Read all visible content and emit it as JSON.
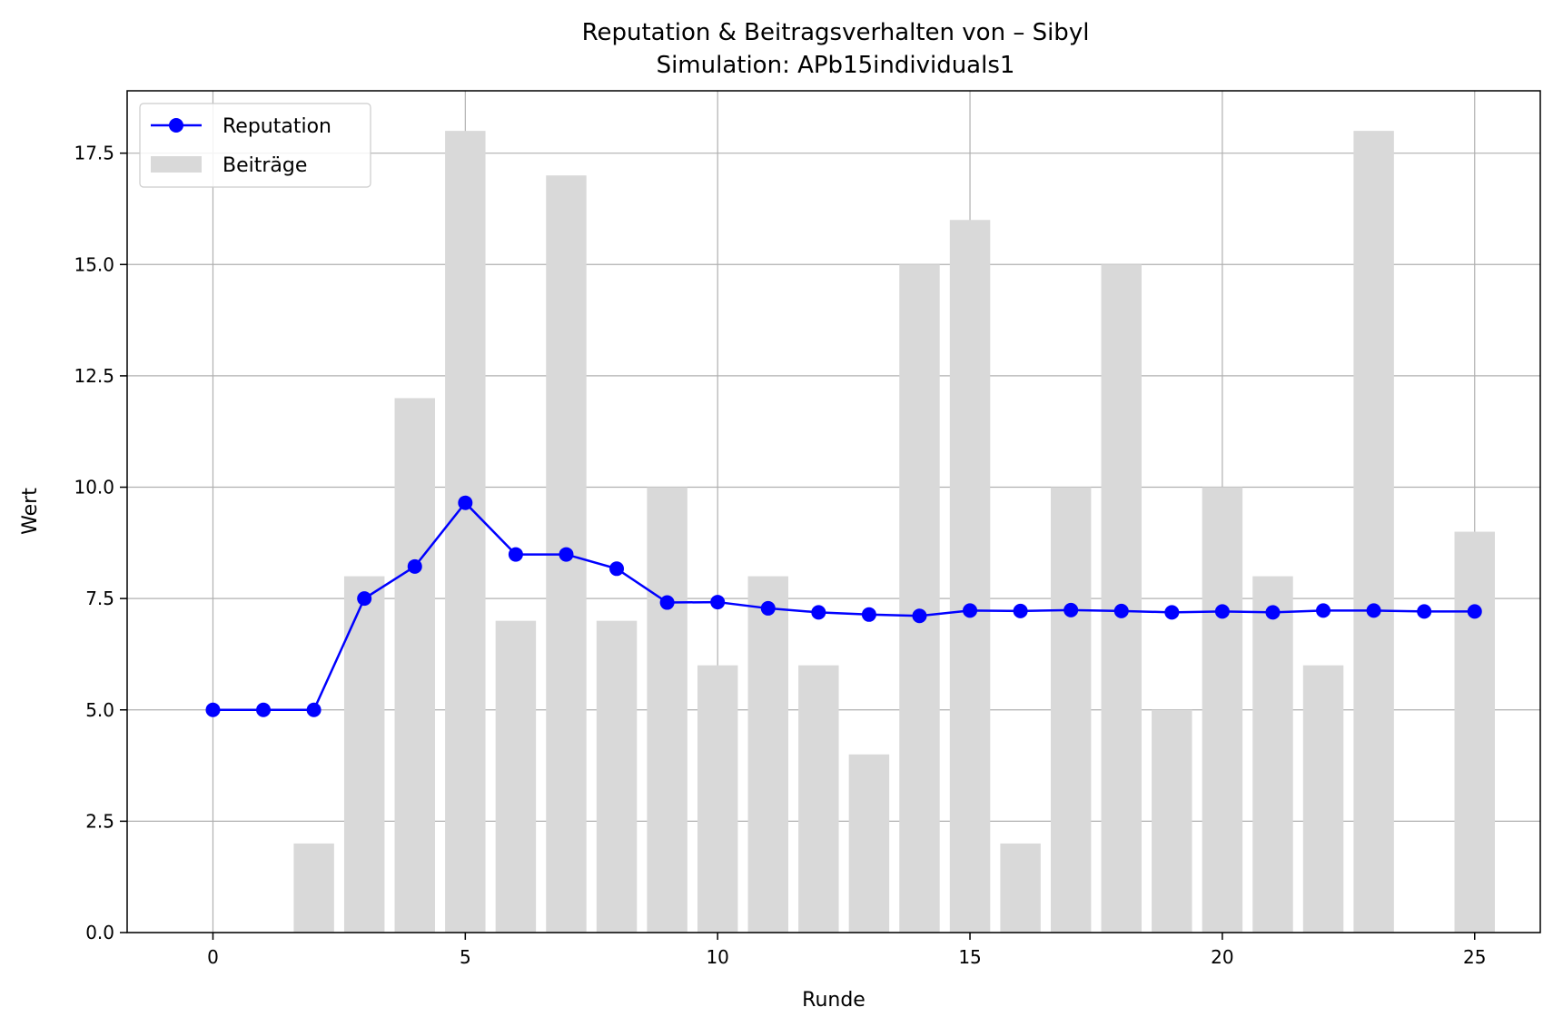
{
  "chart_data": {
    "type": "bar+line",
    "title": "Reputation & Beitragsverhalten von – Sibyl",
    "subtitle": "Simulation: APb15individuals1",
    "xlabel": "Runde",
    "ylabel": "Wert",
    "xlim": [
      -1.7,
      26.3
    ],
    "ylim": [
      0,
      18.9
    ],
    "xticks": [
      0,
      5,
      10,
      15,
      20,
      25
    ],
    "yticks": [
      0.0,
      2.5,
      5.0,
      7.5,
      10.0,
      12.5,
      15.0,
      17.5
    ],
    "grid": true,
    "legend_position": "top-left",
    "series": [
      {
        "name": "Reputation",
        "kind": "line",
        "color": "#0000ff",
        "x": [
          0,
          1,
          2,
          3,
          4,
          5,
          6,
          7,
          8,
          9,
          10,
          11,
          12,
          13,
          14,
          15,
          16,
          17,
          18,
          19,
          20,
          21,
          22,
          23,
          24,
          25
        ],
        "values": [
          5.0,
          5.0,
          5.0,
          7.5,
          8.22,
          9.65,
          8.49,
          8.49,
          8.17,
          7.41,
          7.42,
          7.28,
          7.19,
          7.14,
          7.11,
          7.23,
          7.22,
          7.24,
          7.22,
          7.19,
          7.21,
          7.19,
          7.23,
          7.23,
          7.21,
          7.21
        ]
      },
      {
        "name": "Beiträge",
        "kind": "bar",
        "color": "#d9d9d9",
        "x": [
          0,
          1,
          2,
          3,
          4,
          5,
          6,
          7,
          8,
          9,
          10,
          11,
          12,
          13,
          14,
          15,
          16,
          17,
          18,
          19,
          20,
          21,
          22,
          23,
          24,
          25
        ],
        "values": [
          0,
          2,
          8,
          12,
          18,
          7,
          17,
          7,
          10,
          6,
          8,
          6,
          4,
          15,
          16,
          2,
          10,
          15,
          5,
          10,
          8,
          6,
          18,
          0,
          9,
          0
        ],
        "offset": 1.0,
        "width": 0.8
      }
    ]
  }
}
